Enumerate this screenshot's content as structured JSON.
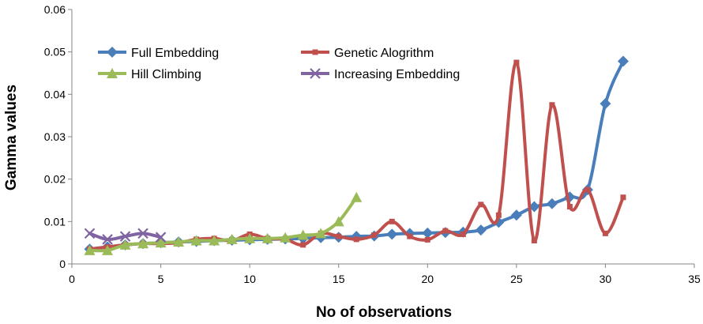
{
  "chart_data": {
    "type": "line",
    "title": "",
    "xlabel": "No of observations",
    "ylabel": "Gamma values",
    "xlim": [
      0,
      35
    ],
    "ylim": [
      0,
      0.06
    ],
    "xticks": [
      0,
      5,
      10,
      15,
      20,
      25,
      30,
      35
    ],
    "yticks": [
      0,
      0.01,
      0.02,
      0.03,
      0.04,
      0.05,
      0.06
    ],
    "xtick_labels": [
      "0",
      "5",
      "10",
      "15",
      "20",
      "25",
      "30",
      "35"
    ],
    "ytick_labels": [
      "0",
      "0.01",
      "0.02",
      "0.03",
      "0.04",
      "0.05",
      "0.06"
    ],
    "grid": false,
    "legend_position": "top-left",
    "series": [
      {
        "name": "Full Embedding",
        "color": "#4a7ebb",
        "marker": "diamond",
        "x": [
          1,
          2,
          3,
          4,
          5,
          6,
          7,
          8,
          9,
          10,
          11,
          12,
          13,
          14,
          15,
          16,
          17,
          18,
          19,
          20,
          21,
          22,
          23,
          24,
          25,
          26,
          27,
          28,
          29,
          30,
          31
        ],
        "y": [
          0.0035,
          0.004,
          0.0045,
          0.0048,
          0.005,
          0.0052,
          0.0053,
          0.0055,
          0.0056,
          0.0057,
          0.0058,
          0.0059,
          0.006,
          0.0062,
          0.0063,
          0.0065,
          0.0066,
          0.007,
          0.0072,
          0.0073,
          0.0074,
          0.0075,
          0.008,
          0.0098,
          0.0115,
          0.0135,
          0.0142,
          0.0158,
          0.0175,
          0.0378,
          0.0478
        ]
      },
      {
        "name": "Genetic Alogrithm",
        "color": "#c0504d",
        "marker": "square",
        "x": [
          1,
          2,
          3,
          4,
          5,
          6,
          7,
          8,
          9,
          10,
          11,
          12,
          13,
          14,
          15,
          16,
          17,
          18,
          19,
          20,
          21,
          22,
          23,
          24,
          25,
          26,
          27,
          28,
          29,
          30,
          31
        ],
        "y": [
          0.0035,
          0.004,
          0.0045,
          0.0048,
          0.0048,
          0.005,
          0.0058,
          0.006,
          0.0055,
          0.007,
          0.006,
          0.0058,
          0.0045,
          0.0072,
          0.0065,
          0.0058,
          0.0068,
          0.01,
          0.0065,
          0.0057,
          0.0078,
          0.007,
          0.014,
          0.0115,
          0.0475,
          0.0055,
          0.0375,
          0.0135,
          0.0175,
          0.0072,
          0.0157
        ]
      },
      {
        "name": "Hill Climbing",
        "color": "#9bbb59",
        "marker": "triangle",
        "x": [
          1,
          2,
          3,
          4,
          5,
          6,
          7,
          8,
          9,
          10,
          11,
          12,
          13,
          14,
          15,
          16
        ],
        "y": [
          0.0032,
          0.0032,
          0.0045,
          0.0048,
          0.005,
          0.0052,
          0.0055,
          0.0055,
          0.0058,
          0.006,
          0.006,
          0.0062,
          0.0068,
          0.0072,
          0.01,
          0.0157
        ]
      },
      {
        "name": "Increasing Embedding",
        "color": "#8064a2",
        "marker": "x",
        "x": [
          1,
          2,
          3,
          4,
          5
        ],
        "y": [
          0.0072,
          0.0058,
          0.0065,
          0.0072,
          0.0063
        ]
      }
    ]
  }
}
